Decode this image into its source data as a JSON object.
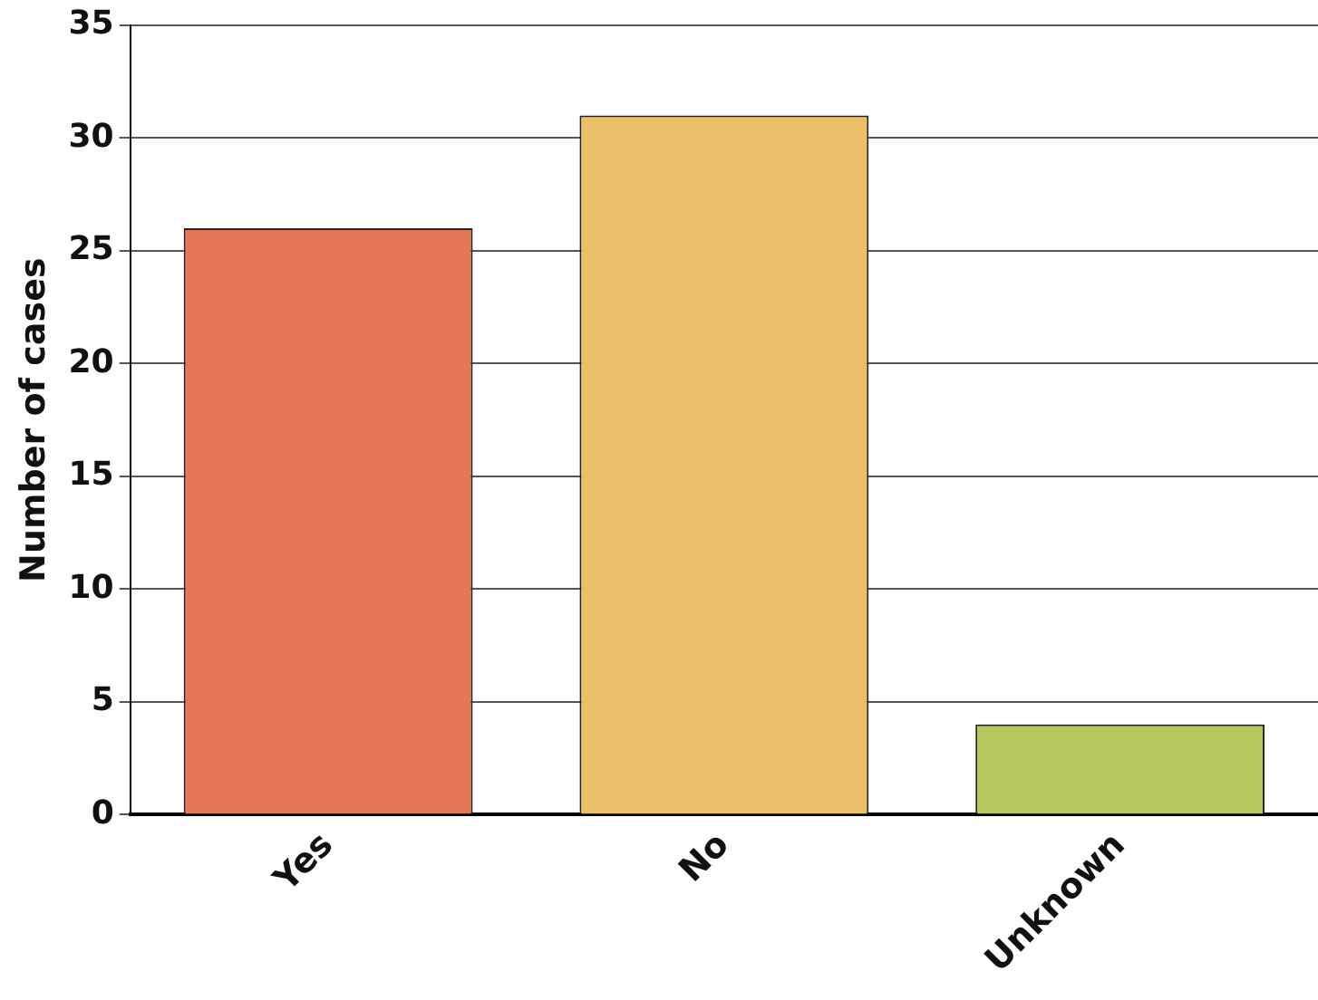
{
  "chart_data": {
    "type": "bar",
    "ylabel": "Number of cases",
    "categories": [
      "Yes",
      "No",
      "Unknown"
    ],
    "values": [
      26,
      31,
      4
    ],
    "colors": [
      "#e57656",
      "#ecc068",
      "#b5c75e"
    ],
    "ylim": [
      0,
      35
    ],
    "yticks": [
      0,
      5,
      10,
      15,
      20,
      25,
      30,
      35
    ],
    "grid": "y",
    "legend": false
  }
}
